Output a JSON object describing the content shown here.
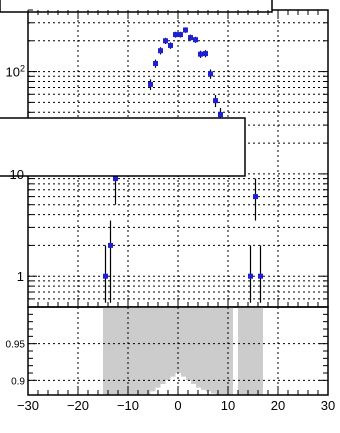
{
  "chart_data": [
    {
      "type": "scatter",
      "title": "",
      "xlabel": "",
      "ylabel": "",
      "xlim": [
        -30,
        30
      ],
      "ylim": [
        0.5,
        400
      ],
      "yscale": "log",
      "grid": true,
      "y_tick_labels": [
        {
          "value": 1,
          "label": "1"
        },
        {
          "value": 10,
          "label": "10"
        },
        {
          "value": 100,
          "label": "10²"
        }
      ],
      "series": [
        {
          "color": "#1f1fd6",
          "points": [
            {
              "x": -14.5,
              "y": 1,
              "ylo": 0.55,
              "yhi": 2
            },
            {
              "x": -13.5,
              "y": 2,
              "ylo": 0.55,
              "yhi": 3.5
            },
            {
              "x": -12.5,
              "y": 9,
              "ylo": 5,
              "yhi": 13
            },
            {
              "x": -5.5,
              "y": 75,
              "ylo": 66,
              "yhi": 84
            },
            {
              "x": -4.5,
              "y": 120,
              "ylo": 109,
              "yhi": 131
            },
            {
              "x": -3.5,
              "y": 160,
              "ylo": 147,
              "yhi": 173
            },
            {
              "x": -2.5,
              "y": 200,
              "ylo": 186,
              "yhi": 214
            },
            {
              "x": -1.5,
              "y": 180,
              "ylo": 167,
              "yhi": 193
            },
            {
              "x": -0.5,
              "y": 230,
              "ylo": 215,
              "yhi": 245
            },
            {
              "x": 0.5,
              "y": 230,
              "ylo": 215,
              "yhi": 245
            },
            {
              "x": 1.5,
              "y": 255,
              "ylo": 239,
              "yhi": 271
            },
            {
              "x": 2.5,
              "y": 215,
              "ylo": 200,
              "yhi": 230
            },
            {
              "x": 3.5,
              "y": 205,
              "ylo": 191,
              "yhi": 219
            },
            {
              "x": 4.5,
              "y": 148,
              "ylo": 136,
              "yhi": 160
            },
            {
              "x": 5.5,
              "y": 150,
              "ylo": 138,
              "yhi": 162
            },
            {
              "x": 6.5,
              "y": 95,
              "ylo": 85,
              "yhi": 105
            },
            {
              "x": 7.5,
              "y": 52,
              "ylo": 45,
              "yhi": 59
            },
            {
              "x": 8.5,
              "y": 38,
              "ylo": 32,
              "yhi": 44
            },
            {
              "x": 14.5,
              "y": 1,
              "ylo": 0.55,
              "yhi": 2
            },
            {
              "x": 15.5,
              "y": 6,
              "ylo": 3.5,
              "yhi": 9
            },
            {
              "x": 16.5,
              "y": 1,
              "ylo": 0.55,
              "yhi": 2
            }
          ]
        }
      ],
      "legend_boxes": 2
    },
    {
      "type": "bar",
      "title": "",
      "xlabel": "",
      "ylabel": "",
      "xlim": [
        -30,
        30
      ],
      "ylim": [
        0.88,
        1.0
      ],
      "y_tick_labels": [
        {
          "value": 0.95,
          "label": "0.95"
        },
        {
          "value": 0.9,
          "label": "0.9"
        }
      ],
      "x_tick_labels": [
        {
          "value": -30,
          "label": "−30"
        },
        {
          "value": -20,
          "label": "−20"
        },
        {
          "value": -10,
          "label": "−10"
        },
        {
          "value": 0,
          "label": "0"
        },
        {
          "value": 10,
          "label": "10"
        },
        {
          "value": 20,
          "label": "20"
        },
        {
          "value": 30,
          "label": "30"
        }
      ],
      "band_color": "#cccccc",
      "bands": [
        {
          "x0": -15,
          "x1": 11,
          "y0": 0.88,
          "y1": 1.0
        },
        {
          "x0": 12,
          "x1": 14,
          "y0": 0.88,
          "y1": 1.0
        },
        {
          "x0": 14,
          "x1": 17,
          "y0": 0.88,
          "y1": 1.0
        }
      ],
      "ratio_values": {
        "x": [
          -5,
          -4,
          -3,
          -2,
          -1,
          0,
          1,
          2,
          3,
          4,
          5,
          6,
          7
        ],
        "y": [
          0.885,
          0.89,
          0.895,
          0.9,
          0.905,
          0.91,
          0.905,
          0.9,
          0.895,
          0.89,
          0.887,
          0.885,
          0.882
        ]
      },
      "grid": true
    }
  ]
}
